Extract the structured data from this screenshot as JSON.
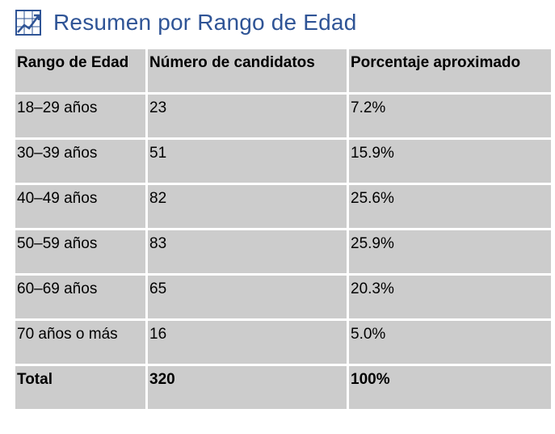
{
  "title": "Resumen por Rango de Edad",
  "icon": "chart-icon",
  "colors": {
    "title": "#2f5496",
    "cell_bg": "#cccccc"
  },
  "table": {
    "headers": [
      "Rango de Edad",
      "Número de candidatos",
      "Porcentaje aproximado"
    ],
    "rows": [
      [
        "18–29 años",
        "23",
        "7.2%"
      ],
      [
        "30–39 años",
        "51",
        "15.9%"
      ],
      [
        "40–49 años",
        "82",
        "25.6%"
      ],
      [
        "50–59 años",
        "83",
        "25.9%"
      ],
      [
        "60–69 años",
        "65",
        "20.3%"
      ],
      [
        "70 años o más",
        "16",
        "5.0%"
      ]
    ],
    "total": [
      "Total",
      "320",
      "100%"
    ]
  }
}
